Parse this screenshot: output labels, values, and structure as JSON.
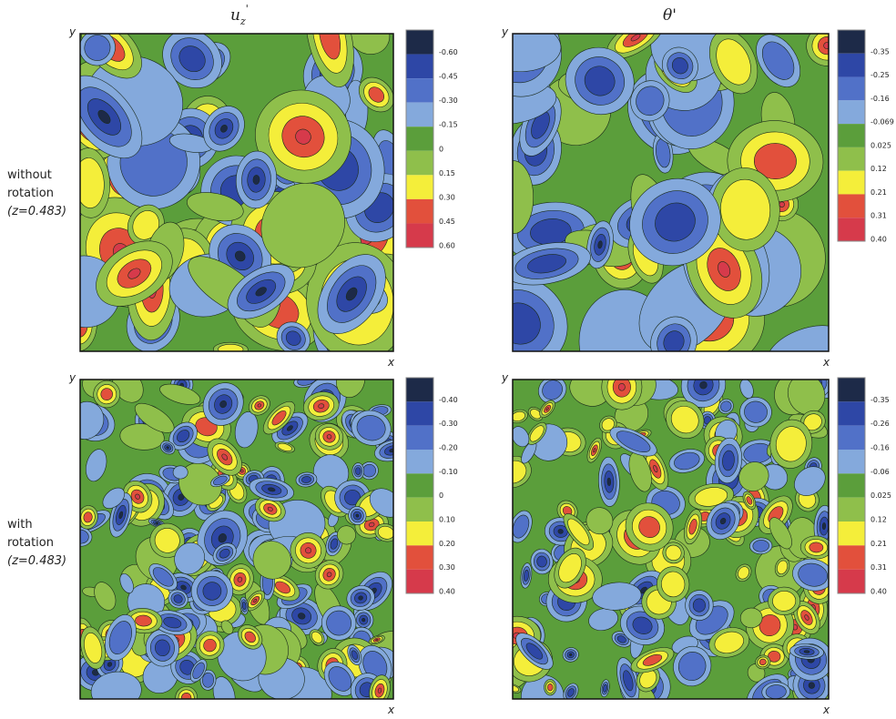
{
  "column_titles": [
    {
      "base": "u",
      "sub": "z",
      "sup": "'"
    },
    {
      "base": "θ'"
    }
  ],
  "row_labels": [
    {
      "lines": [
        "without",
        "rotation"
      ],
      "param": "(z=0.483)"
    },
    {
      "lines": [
        "with",
        "rotation"
      ],
      "param": "(z=0.483)"
    }
  ],
  "colors": [
    "#1d2a48",
    "#2e47a6",
    "#5171c8",
    "#84a9dc",
    "#5b9e3b",
    "#8fbf4b",
    "#f4ee3a",
    "#e2503c",
    "#d63a4b"
  ],
  "panels": [
    {
      "x_label": "x",
      "y_label": "y",
      "colorbar_labels": [
        "-0.60",
        "-0.45",
        "-0.30",
        "-0.15",
        "0",
        "0.15",
        "0.30",
        "0.45",
        "0.60"
      ]
    },
    {
      "x_label": "x",
      "y_label": "y",
      "colorbar_labels": [
        "-0.35",
        "-0.25",
        "-0.16",
        "-0.069",
        "0.025",
        "0.12",
        "0.21",
        "0.31",
        "0.40"
      ]
    },
    {
      "x_label": "x",
      "y_label": "y",
      "colorbar_labels": [
        "-0.40",
        "-0.30",
        "-0.20",
        "-0.10",
        "0",
        "0.10",
        "0.20",
        "0.30",
        "0.40"
      ]
    },
    {
      "x_label": "x",
      "y_label": "y",
      "colorbar_labels": [
        "-0.35",
        "-0.26",
        "-0.16",
        "-0.06",
        "0.025",
        "0.12",
        "0.21",
        "0.31",
        "0.40"
      ]
    }
  ]
}
